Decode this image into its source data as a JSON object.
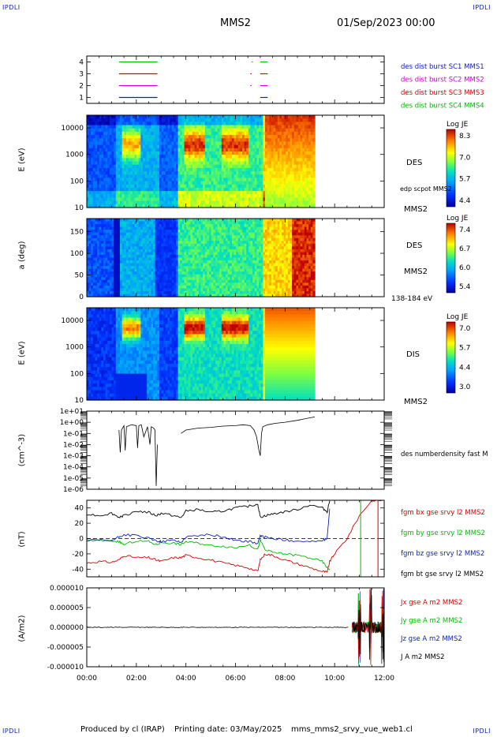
{
  "corners": {
    "tl": "IPDLI",
    "tr": "IPDLI",
    "bl": "IPDLI",
    "br": "IPDLI"
  },
  "header": {
    "spacecraft": "MMS2",
    "datetime": "01/Sep/2023 00:00"
  },
  "footer": {
    "produced_by": "Produced by cl (IRAP)",
    "printing_date": "Printing date: 03/May/2025",
    "config": "mms_mms2_srvy_vue_web1.cl"
  },
  "colors": {
    "mms1": "#1020c0",
    "mms2": "#cc00cc",
    "mms3": "#dd0000",
    "mms4": "#00bb00",
    "black": "#000000"
  },
  "chart_data": [
    {
      "type": "line",
      "panel": "burst-availability",
      "yticks": [
        "1",
        "2",
        "3",
        "4"
      ],
      "ylim": [
        0.5,
        4.5
      ],
      "legend": [
        {
          "name": "des dist burst SC1 MMS1",
          "color": "#1020c0"
        },
        {
          "name": "des dist burst SC2 MMS2",
          "color": "#cc00cc"
        },
        {
          "name": "des dist burst SC3 MMS3",
          "color": "#dd0000"
        },
        {
          "name": "des dist burst SC4 MMS4",
          "color": "#00bb00"
        }
      ],
      "series": [
        {
          "level": 4,
          "color": "#00bb00",
          "intervals": [
            [
              1.3,
              2.85
            ],
            [
              6.65,
              6.7
            ],
            [
              7.0,
              7.3
            ]
          ]
        },
        {
          "level": 3,
          "color": "#dd0000",
          "intervals": [
            [
              1.3,
              2.85
            ],
            [
              6.6,
              6.65
            ],
            [
              7.0,
              7.3
            ]
          ]
        },
        {
          "level": 2,
          "color": "#cc00cc",
          "intervals": [
            [
              1.3,
              2.85
            ],
            [
              6.6,
              6.65
            ],
            [
              7.0,
              7.3
            ]
          ]
        },
        {
          "level": 1,
          "color": "#1020c0",
          "intervals": [
            [
              1.3,
              2.85
            ],
            [
              7.0,
              7.3
            ]
          ]
        }
      ]
    },
    {
      "type": "heatmap",
      "panel": "des-energy",
      "ylabel": "E (eV)",
      "yticks": [
        "10",
        "100",
        "1000",
        "10000"
      ],
      "ylim": [
        10,
        30000
      ],
      "log": true,
      "right_label": "DES",
      "right_sub": "MMS2",
      "overlay_label": "edp scpot MMS2",
      "colorbar": {
        "title": "Log JE",
        "ticks": [
          "8.3",
          "7.0",
          "5.7",
          "4.4"
        ],
        "range": [
          4.4,
          8.3
        ]
      },
      "data_end_hour": 9.2
    },
    {
      "type": "heatmap",
      "panel": "des-pitch",
      "ylabel": "a (deg)",
      "yticks": [
        "0",
        "50",
        "100",
        "150"
      ],
      "ylim": [
        0,
        180
      ],
      "right_label": "DES",
      "right_sub": "MMS2",
      "energy_band": "138-184 eV",
      "colorbar": {
        "title": "Log JE",
        "ticks": [
          "7.4",
          "6.7",
          "6.0",
          "5.4"
        ],
        "range": [
          5.4,
          7.4
        ]
      },
      "data_end_hour": 9.2
    },
    {
      "type": "heatmap",
      "panel": "dis-energy",
      "ylabel": "E (eV)",
      "yticks": [
        "10",
        "100",
        "1000",
        "10000"
      ],
      "ylim": [
        10,
        30000
      ],
      "log": true,
      "right_label": "DIS",
      "right_sub": "MMS2",
      "colorbar": {
        "title": "Log JE",
        "ticks": [
          "7.0",
          "5.7",
          "4.4",
          "3.0"
        ],
        "range": [
          3.0,
          7.0
        ]
      },
      "data_end_hour": 9.2
    },
    {
      "type": "line",
      "panel": "density",
      "ylabel": "(cm^-3)",
      "yticks": [
        "1e+01",
        "1e+00",
        "1e-01",
        "1e-02",
        "1e-03",
        "1e-04",
        "1e-05",
        "1e-06"
      ],
      "ylim": [
        1e-06,
        10
      ],
      "log": true,
      "legend": [
        {
          "name": "des numberdensity fast M",
          "color": "#000000"
        }
      ],
      "x": [
        1.3,
        1.35,
        1.4,
        1.5,
        1.55,
        1.6,
        1.8,
        2.0,
        2.05,
        2.1,
        2.2,
        2.3,
        2.45,
        2.55,
        2.6,
        2.7,
        2.75,
        2.8,
        2.85,
        3.0,
        3.8,
        4.0,
        4.5,
        5.0,
        5.5,
        6.0,
        6.3,
        6.6,
        6.75,
        6.85,
        6.95,
        7.0,
        7.05,
        7.1,
        7.3,
        7.6,
        8.0,
        8.5,
        9.0,
        9.2
      ],
      "y": [
        0.2,
        0.002,
        0.2,
        0.5,
        0.003,
        0.4,
        0.6,
        0.5,
        0.005,
        0.5,
        0.6,
        0.05,
        0.4,
        0.01,
        0.4,
        0.3,
        0.2,
        2e-06,
        0.01,
        null,
        0.1,
        0.2,
        0.3,
        0.35,
        0.45,
        0.5,
        0.6,
        0.5,
        0.2,
        0.05,
        0.003,
        0.001,
        0.1,
        0.4,
        0.6,
        0.8,
        1.0,
        1.5,
        2.5,
        3.0
      ]
    },
    {
      "type": "line",
      "panel": "magnetic-field",
      "ylabel": "(nT)",
      "yticks": [
        "40",
        "20",
        "0",
        "-20",
        "-40"
      ],
      "ylim": [
        -50,
        50
      ],
      "zero_line": true,
      "legend": [
        {
          "name": "fgm bx gse srvy l2 MMS2",
          "color": "#dd0000"
        },
        {
          "name": "fgm by gse srvy l2 MMS2",
          "color": "#00bb00"
        },
        {
          "name": "fgm bz gse srvy l2 MMS2",
          "color": "#1020c0"
        },
        {
          "name": "fgm bt gse srvy l2 MMS2",
          "color": "#000000"
        }
      ],
      "x": [
        0,
        0.5,
        1.0,
        1.3,
        1.5,
        2.0,
        2.5,
        2.8,
        3.0,
        3.5,
        3.8,
        4.0,
        4.5,
        5.0,
        5.5,
        6.0,
        6.5,
        6.9,
        7.0,
        7.2,
        7.5,
        8.0,
        8.5,
        9.0,
        9.5,
        9.7,
        9.8,
        10.0,
        10.5,
        11.0,
        11.5,
        12.0
      ],
      "series": [
        {
          "name": "bx",
          "color": "#dd0000",
          "values": [
            -32,
            -30,
            -31,
            -28,
            -22,
            -25,
            -25,
            -28,
            -30,
            -25,
            -25,
            -22,
            -25,
            -28,
            -32,
            -35,
            -38,
            -43,
            -28,
            -20,
            -22,
            -28,
            -33,
            -38,
            -43,
            -44,
            -30,
            -20,
            0,
            30,
            50,
            50
          ]
        },
        {
          "name": "by",
          "color": "#00bb00",
          "values": [
            -2,
            -3,
            -3,
            -4,
            -8,
            -3,
            -4,
            -8,
            -5,
            -6,
            -8,
            -4,
            -6,
            -9,
            -10,
            -12,
            -8,
            -14,
            -2,
            -15,
            -18,
            -20,
            -22,
            -25,
            -30,
            -38,
            -40,
            null,
            null,
            null,
            null,
            null
          ]
        },
        {
          "name": "bz",
          "color": "#1020c0",
          "values": [
            -3,
            -2,
            -3,
            2,
            5,
            4,
            0,
            -3,
            -4,
            -2,
            -5,
            2,
            4,
            5,
            2,
            -2,
            -4,
            -6,
            3,
            2,
            0,
            -2,
            -3,
            -4,
            -3,
            0,
            40,
            null,
            null,
            null,
            null,
            null
          ]
        },
        {
          "name": "bt",
          "color": "#000000",
          "values": [
            32,
            30,
            33,
            28,
            30,
            36,
            34,
            30,
            33,
            30,
            27,
            36,
            38,
            34,
            36,
            40,
            42,
            45,
            28,
            30,
            32,
            35,
            38,
            44,
            40,
            35,
            50,
            null,
            null,
            null,
            null,
            null
          ]
        }
      ]
    },
    {
      "type": "line",
      "panel": "current-density",
      "ylabel": "(A/m2)",
      "yticks": [
        "0.000010",
        "0.000005",
        "0.000000",
        "-0.000005",
        "-0.000010"
      ],
      "ylim": [
        -1e-05,
        1e-05
      ],
      "legend": [
        {
          "name": "Jx gse A m2 MMS2",
          "color": "#dd0000"
        },
        {
          "name": "Jy gse A m2 MMS2",
          "color": "#00bb00"
        },
        {
          "name": "Jz gse A m2 MMS2",
          "color": "#1020c0"
        },
        {
          "name": "J A m2 MMS2",
          "color": "#000000"
        }
      ]
    }
  ],
  "xaxis": {
    "ticks": [
      "00:00",
      "02:00",
      "04:00",
      "06:00",
      "08:00",
      "10:00",
      "12:00"
    ],
    "xlim": [
      0,
      12
    ]
  }
}
